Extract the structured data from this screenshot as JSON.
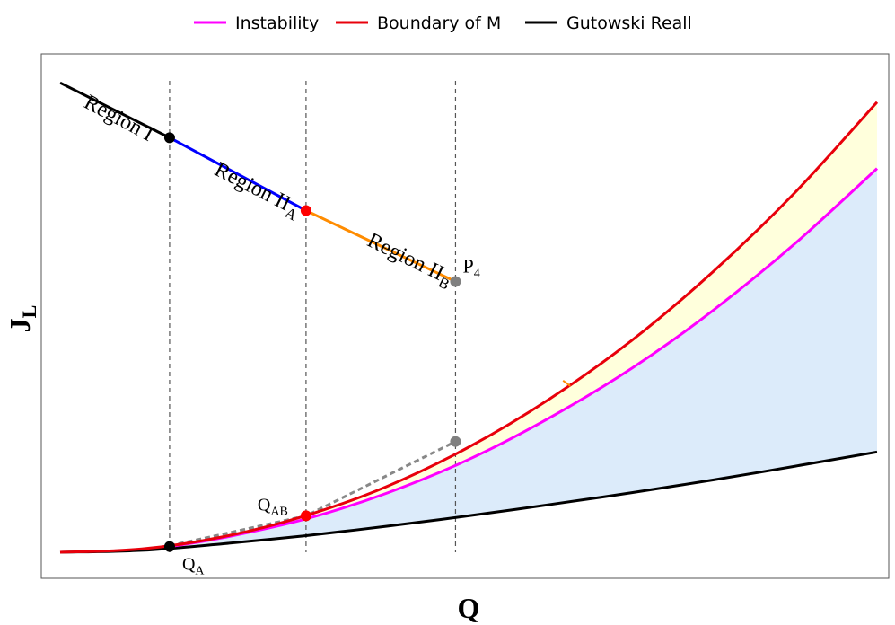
{
  "chart_data": {
    "type": "line",
    "xlabel": "Q",
    "ylabel": "J",
    "ylabel_subscript": "L",
    "axis_ticks": "none",
    "legend_position": "top-center",
    "legend": [
      {
        "label": "Instability",
        "color": "#ff00ff"
      },
      {
        "label": "Boundary of M",
        "color": "#e8000b"
      },
      {
        "label": "Gutowski Reall",
        "color": "#000000"
      }
    ],
    "xlim": [
      0,
      1
    ],
    "ylim": [
      0,
      1
    ],
    "series": [
      {
        "name": "Boundary of M",
        "color": "#e8000b",
        "x": [
          0,
          0.1,
          0.2,
          0.3,
          0.4,
          0.5,
          0.6,
          0.7,
          0.8,
          0.9,
          1.0
        ],
        "y": [
          0.0,
          0.007,
          0.033,
          0.077,
          0.139,
          0.222,
          0.325,
          0.448,
          0.594,
          0.761,
          0.951
        ]
      },
      {
        "name": "Instability",
        "color": "#ff00ff",
        "x": [
          0.134,
          0.2,
          0.3,
          0.4,
          0.5,
          0.6,
          0.7,
          0.8,
          0.9,
          1.0
        ],
        "y": [
          0.012,
          0.031,
          0.07,
          0.125,
          0.196,
          0.285,
          0.389,
          0.512,
          0.653,
          0.811
        ]
      },
      {
        "name": "Gutowski Reall",
        "color": "#000000",
        "x": [
          0,
          0.1,
          0.2,
          0.3,
          0.4,
          0.5,
          0.6,
          0.7,
          0.8,
          0.9,
          1.0
        ],
        "y": [
          0.0,
          0.004,
          0.018,
          0.035,
          0.055,
          0.077,
          0.101,
          0.126,
          0.153,
          0.182,
          0.212
        ]
      }
    ],
    "region_line": [
      {
        "label": "Region I",
        "subscript": "",
        "color": "#000000",
        "x": [
          0,
          0.134
        ],
        "y": [
          0.992,
          0.876
        ]
      },
      {
        "label": "Region II",
        "subscript": "A",
        "color": "#0000ff",
        "x": [
          0.134,
          0.301
        ],
        "y": [
          0.876,
          0.722
        ]
      },
      {
        "label": "Region II",
        "subscript": "B",
        "color": "#ff8c00",
        "x": [
          0.301,
          0.484
        ],
        "y": [
          0.722,
          0.572
        ]
      }
    ],
    "points": [
      {
        "name": "Q_A",
        "label": "Q",
        "subscript": "A",
        "x": 0.134,
        "y": 0.012,
        "color": "#000000"
      },
      {
        "name": "Q_AB",
        "label": "Q",
        "subscript": "AB",
        "x": 0.301,
        "y": 0.077,
        "color": "#ff0000"
      },
      {
        "name": "P4",
        "label": "P",
        "subscript": "4",
        "x": 0.484,
        "y": 0.572,
        "color": "#808080"
      },
      {
        "name": "P4-projection",
        "label": "",
        "subscript": "",
        "x": 0.484,
        "y": 0.234,
        "color": "#808080"
      },
      {
        "name": "region-I-end",
        "label": "",
        "subscript": "",
        "x": 0.134,
        "y": 0.876,
        "color": "#000000"
      },
      {
        "name": "region-IIA-end",
        "label": "",
        "subscript": "",
        "x": 0.301,
        "y": 0.722,
        "color": "#ff0000"
      }
    ],
    "vertical_guides": [
      0.134,
      0.301,
      0.484
    ],
    "shaded_regions": [
      {
        "name": "between-boundary-and-instability",
        "color": "#ffffdc"
      },
      {
        "name": "between-instability-and-gutowski-reall",
        "color": "#dcebfa"
      }
    ]
  }
}
